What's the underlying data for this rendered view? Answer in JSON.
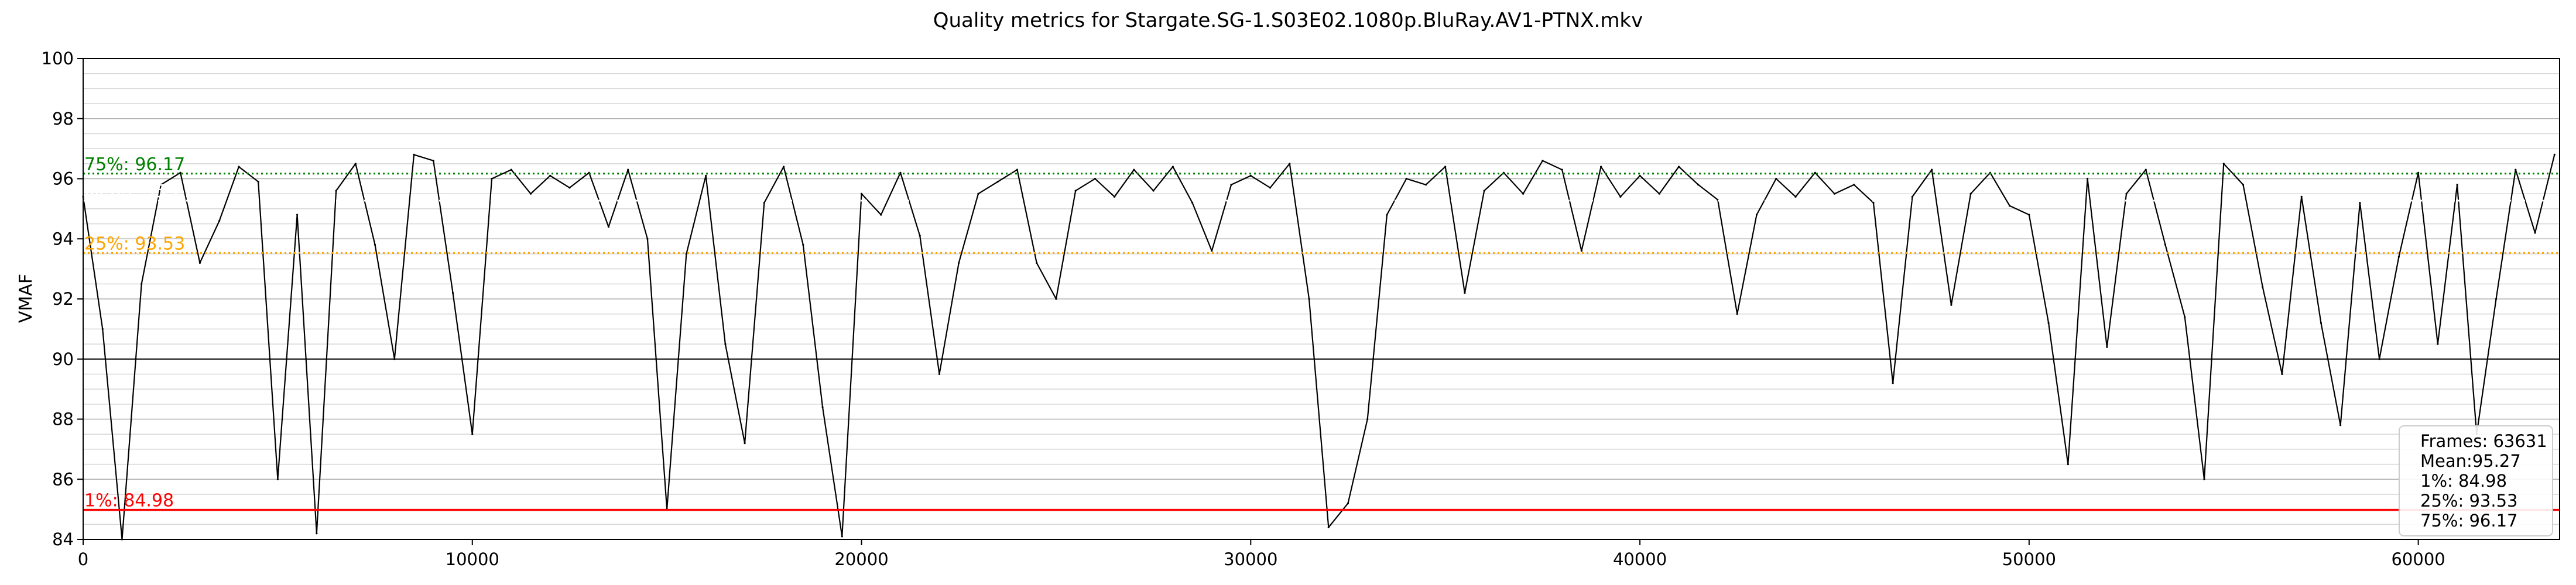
{
  "chart_data": {
    "type": "line",
    "title": "Quality metrics for Stargate.SG-1.S03E02.1080p.BluRay.AV1-PTNX.mkv",
    "xlabel": "",
    "ylabel": "VMAF",
    "xlim": [
      0,
      63631
    ],
    "ylim": [
      84,
      100
    ],
    "x_ticks": [
      0,
      10000,
      20000,
      30000,
      40000,
      50000,
      60000
    ],
    "x_tick_labels": [
      "0",
      "10000",
      "20000",
      "30000",
      "40000",
      "50000",
      "60000"
    ],
    "y_ticks": [
      84,
      86,
      88,
      90,
      92,
      94,
      96,
      98,
      100
    ],
    "y_tick_labels": [
      "84",
      "86",
      "88",
      "90",
      "92",
      "94",
      "96",
      "98",
      "100"
    ],
    "grid": true,
    "series": [
      {
        "color": "#000000",
        "x": [
          0,
          500,
          1000,
          1500,
          2000,
          2500,
          3000,
          3500,
          4000,
          4500,
          5000,
          5500,
          6000,
          6500,
          7000,
          7500,
          8000,
          8500,
          9000,
          9500,
          10000,
          10500,
          11000,
          11500,
          12000,
          12500,
          13000,
          13500,
          14000,
          14500,
          15000,
          15500,
          16000,
          16500,
          17000,
          17500,
          18000,
          18500,
          19000,
          19500,
          20000,
          20500,
          21000,
          21500,
          22000,
          22500,
          23000,
          23500,
          24000,
          24500,
          25000,
          25500,
          26000,
          26500,
          27000,
          27500,
          28000,
          28500,
          29000,
          29500,
          30000,
          30500,
          31000,
          31500,
          32000,
          32500,
          33000,
          33500,
          34000,
          34500,
          35000,
          35500,
          36000,
          36500,
          37000,
          37500,
          38000,
          38500,
          39000,
          39500,
          40000,
          40500,
          41000,
          41500,
          42000,
          42500,
          43000,
          43500,
          44000,
          44500,
          45000,
          45500,
          46000,
          46500,
          47000,
          47500,
          48000,
          48500,
          49000,
          49500,
          50000,
          50500,
          51000,
          51500,
          52000,
          52500,
          53000,
          53500,
          54000,
          54500,
          55000,
          55500,
          56000,
          56500,
          57000,
          57500,
          58000,
          58500,
          59000,
          59500,
          60000,
          60500,
          61000,
          61500,
          62000,
          62500,
          63000,
          63500
        ],
        "y": [
          95.4,
          91.0,
          84.0,
          92.5,
          95.8,
          96.2,
          93.2,
          94.6,
          96.4,
          95.9,
          86.0,
          94.8,
          84.2,
          95.6,
          96.5,
          93.8,
          90.0,
          96.8,
          96.6,
          92.2,
          87.5,
          96.0,
          96.3,
          95.5,
          96.1,
          95.7,
          96.2,
          94.4,
          96.3,
          94.0,
          85.0,
          93.5,
          96.1,
          90.5,
          87.2,
          95.2,
          96.4,
          93.8,
          88.4,
          84.1,
          95.5,
          94.8,
          96.2,
          94.1,
          89.5,
          93.2,
          95.5,
          95.9,
          96.3,
          93.2,
          92.0,
          95.6,
          96.0,
          95.4,
          96.3,
          95.6,
          96.4,
          95.2,
          93.6,
          95.8,
          96.1,
          95.7,
          96.5,
          92.0,
          84.4,
          85.2,
          88.0,
          94.8,
          96.0,
          95.8,
          96.4,
          92.2,
          95.6,
          96.2,
          95.5,
          96.6,
          96.3,
          93.6,
          96.4,
          95.4,
          96.1,
          95.5,
          96.4,
          95.8,
          95.3,
          91.5,
          94.8,
          96.0,
          95.4,
          96.2,
          95.5,
          95.8,
          95.2,
          89.2,
          95.4,
          96.3,
          91.8,
          95.5,
          96.2,
          95.1,
          94.8,
          91.2,
          86.5,
          96.0,
          90.4,
          95.5,
          96.3,
          93.8,
          91.4,
          86.0,
          96.5,
          95.8,
          92.4,
          89.5,
          95.4,
          91.2,
          87.8,
          95.2,
          90.0,
          93.4,
          96.2,
          90.5,
          95.8,
          87.5,
          92.0,
          96.3,
          94.2,
          96.8
        ]
      }
    ],
    "reference_lines": [
      {
        "label": "75%: 96.17",
        "value": 96.17,
        "color": "#008000",
        "style": "dotted"
      },
      {
        "label": "Mean: 95.27",
        "value": 95.27,
        "color": "#ffffff",
        "style": "dotted"
      },
      {
        "label": "25%: 93.53",
        "value": 93.53,
        "color": "#ffa500",
        "style": "dotted"
      },
      {
        "label": "1%: 84.98",
        "value": 84.98,
        "color": "#ff0000",
        "style": "solid"
      }
    ],
    "legend_position": "bottom-right",
    "legend_lines": [
      "Frames: 63631",
      "Mean:95.27",
      "1%: 84.98",
      "25%: 93.53",
      "75%: 96.17"
    ]
  }
}
